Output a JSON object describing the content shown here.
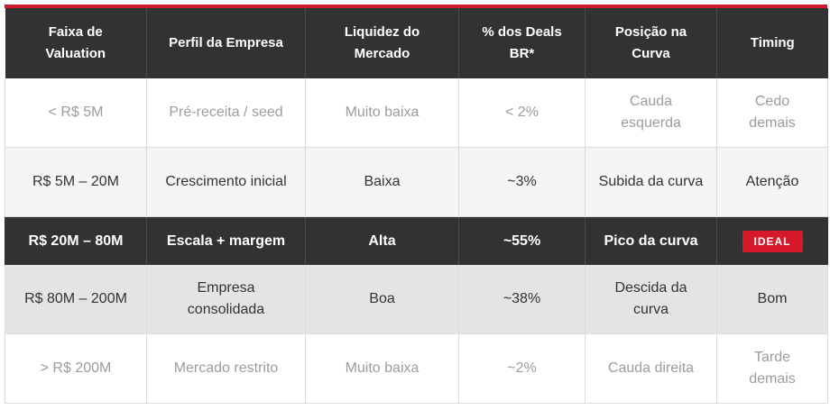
{
  "table": {
    "headers": [
      "Faixa de Valuation",
      "Perfil da Empresa",
      "Liquidez do Mercado",
      "% dos Deals BR*",
      "Posição na Curva",
      "Timing"
    ],
    "rows": [
      {
        "style": "muted",
        "cells": [
          "< R$ 5M",
          "Pré-receita / seed",
          "Muito baixa",
          "< 2%",
          "Cauda esquerda",
          "Cedo demais"
        ]
      },
      {
        "style": "normal",
        "cells": [
          "R$ 5M – 20M",
          "Crescimento inicial",
          "Baixa",
          "~3%",
          "Subida da curva",
          "Atenção"
        ]
      },
      {
        "style": "highlight",
        "cells": [
          "R$ 20M – 80M",
          "Escala + margem",
          "Alta",
          "~55%",
          "Pico da curva",
          "IDEAL"
        ]
      },
      {
        "style": "alt",
        "cells": [
          "R$ 80M – 200M",
          "Empresa consolidada",
          "Boa",
          "~38%",
          "Descida da curva",
          "Bom"
        ]
      },
      {
        "style": "muted",
        "cells": [
          "> R$ 200M",
          "Mercado restrito",
          "Muito baixa",
          "~2%",
          "Cauda direita",
          "Tarde demais"
        ]
      }
    ]
  },
  "colors": {
    "header_bg": "#323232",
    "accent_red": "#cc1b2b",
    "badge_red": "#d7182a",
    "muted_text": "#9c9c9c",
    "alt_row_bg": "#e4e4e6"
  }
}
